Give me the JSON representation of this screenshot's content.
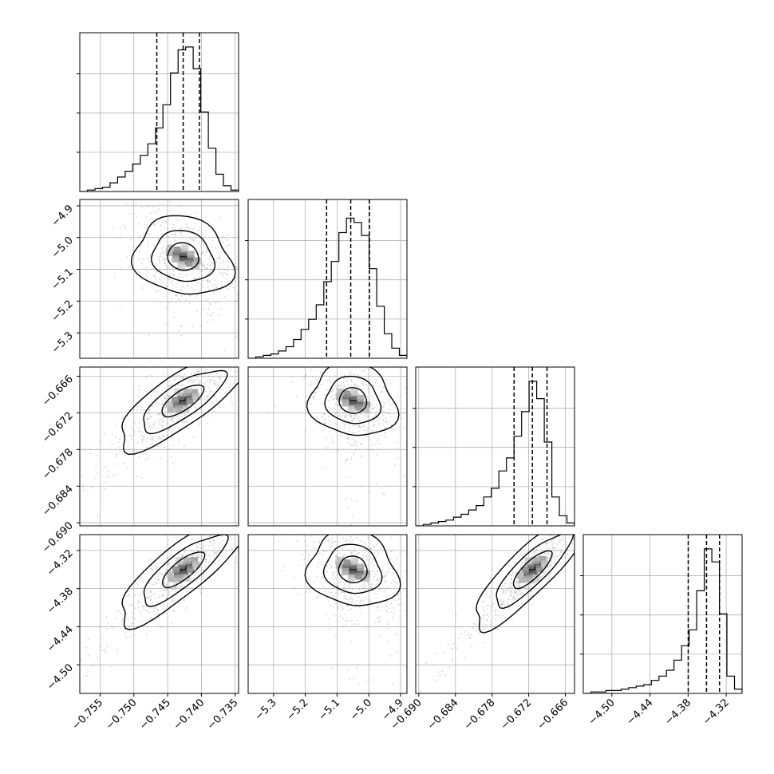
{
  "chart_data": {
    "type": "corner",
    "grid": true,
    "parameters": [
      {
        "range": [
          -0.758,
          -0.7345
        ],
        "ticks": [
          -0.755,
          -0.75,
          -0.745,
          -0.74,
          -0.735
        ],
        "tick_labels": [
          "−0.755",
          "−0.750",
          "−0.745",
          "−0.740",
          "−0.735"
        ],
        "quantiles": [
          -0.7466,
          -0.7427,
          -0.7403
        ],
        "hist": [
          0.0,
          1,
          2,
          3,
          6,
          10,
          14,
          19,
          25,
          33,
          44,
          60,
          82,
          98,
          100,
          85,
          55,
          30,
          12,
          4,
          1,
          0
        ]
      },
      {
        "range": [
          -5.38,
          -4.88
        ],
        "ticks": [
          -5.3,
          -5.2,
          -5.1,
          -5.0,
          -4.9
        ],
        "tick_labels": [
          "−5.3",
          "−5.2",
          "−5.1",
          "−5.0",
          "−4.9"
        ],
        "quantiles": [
          -5.133,
          -5.057,
          -4.998
        ],
        "hist": [
          0,
          1,
          2,
          3,
          5,
          8,
          13,
          20,
          27,
          37,
          53,
          67,
          87,
          97,
          94,
          85,
          62,
          36,
          17,
          7,
          2,
          0
        ]
      },
      {
        "range": [
          -0.6905,
          -0.6645
        ],
        "ticks": [
          -0.69,
          -0.684,
          -0.678,
          -0.672,
          -0.666
        ],
        "tick_labels": [
          "−0.690",
          "−0.684",
          "−0.678",
          "−0.672",
          "−0.666"
        ],
        "quantiles": [
          -0.6744,
          -0.6714,
          -0.669
        ],
        "hist": [
          0,
          1,
          2,
          3,
          4,
          6,
          8,
          11,
          14,
          20,
          26,
          38,
          47,
          62,
          79,
          100,
          88,
          58,
          20,
          7,
          2,
          0
        ]
      },
      {
        "range": [
          -4.545,
          -4.295
        ],
        "ticks": [
          -4.5,
          -4.44,
          -4.38,
          -4.32
        ],
        "tick_labels": [
          "−4.50",
          "−4.44",
          "−4.38",
          "−4.32"
        ],
        "quantiles": [
          -4.3798,
          -4.351,
          -4.3305
        ],
        "hist": [
          0,
          1,
          1,
          2,
          2,
          3,
          4,
          5,
          6,
          9,
          12,
          16,
          23,
          33,
          44,
          71,
          100,
          91,
          55,
          12,
          3,
          0
        ]
      }
    ],
    "pairs": [
      {
        "row": 1,
        "col": 0,
        "center": [
          -0.7427,
          -5.06
        ],
        "sd": [
          0.0035,
          0.065
        ],
        "corr": -0.35,
        "tail": "down-right"
      },
      {
        "row": 2,
        "col": 0,
        "center": [
          -0.7428,
          -0.67
        ],
        "sd": [
          0.0035,
          0.0035
        ],
        "corr": 0.75,
        "tail": "down-left"
      },
      {
        "row": 2,
        "col": 1,
        "center": [
          -5.05,
          -0.67
        ],
        "sd": [
          0.065,
          0.0035
        ],
        "corr": -0.3,
        "tail": "down-right"
      },
      {
        "row": 3,
        "col": 0,
        "center": [
          -0.7427,
          -4.35
        ],
        "sd": [
          0.0035,
          0.035
        ],
        "corr": 0.85,
        "tail": "down-left"
      },
      {
        "row": 3,
        "col": 1,
        "center": [
          -5.05,
          -4.35
        ],
        "sd": [
          0.065,
          0.035
        ],
        "corr": -0.3,
        "tail": "down-right"
      },
      {
        "row": 3,
        "col": 2,
        "center": [
          -0.6714,
          -4.35
        ],
        "sd": [
          0.0035,
          0.035
        ],
        "corr": 0.93,
        "tail": "down-left"
      }
    ]
  }
}
